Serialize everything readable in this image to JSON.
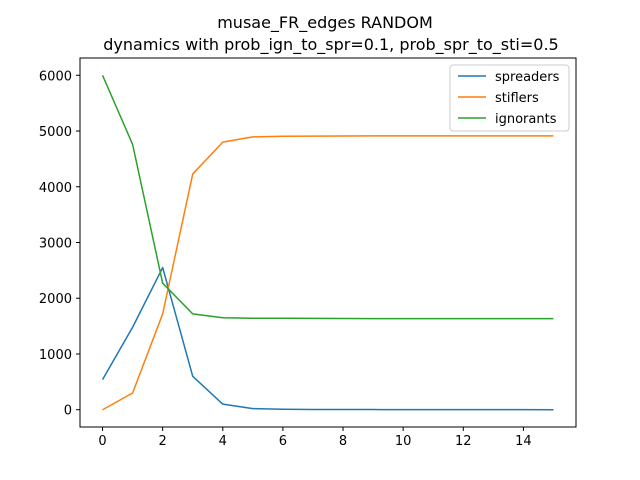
{
  "chart_data": {
    "type": "line",
    "title_line1": "musae_FR_edges RANDOM",
    "title_line2": "dynamics with prob_ign_to_spr=0.1, prob_spr_to_sti=0.5",
    "xlabel": "",
    "ylabel": "",
    "xlim": [
      -0.75,
      15.75
    ],
    "ylim": [
      -310,
      6310
    ],
    "xticks": [
      0,
      2,
      4,
      6,
      8,
      10,
      12,
      14
    ],
    "yticks": [
      0,
      1000,
      2000,
      3000,
      4000,
      5000,
      6000
    ],
    "grid": false,
    "legend_position": "top-right",
    "x": [
      0,
      1,
      2,
      3,
      4,
      5,
      6,
      7,
      8,
      9,
      10,
      11,
      12,
      13,
      14,
      15
    ],
    "series": [
      {
        "name": "spreaders",
        "color": "#1f77b4",
        "values": [
          540,
          1480,
          2550,
          600,
          100,
          20,
          8,
          5,
          4,
          3,
          2,
          2,
          1,
          1,
          1,
          0
        ]
      },
      {
        "name": "stiflers",
        "color": "#ff7f0e",
        "values": [
          0,
          300,
          1720,
          4230,
          4800,
          4895,
          4905,
          4908,
          4910,
          4912,
          4912,
          4912,
          4912,
          4912,
          4912,
          4913
        ]
      },
      {
        "name": "ignorants",
        "color": "#2ca02c",
        "values": [
          6000,
          4760,
          2270,
          1720,
          1650,
          1640,
          1640,
          1638,
          1636,
          1635,
          1635,
          1635,
          1635,
          1635,
          1635,
          1635
        ]
      }
    ]
  }
}
